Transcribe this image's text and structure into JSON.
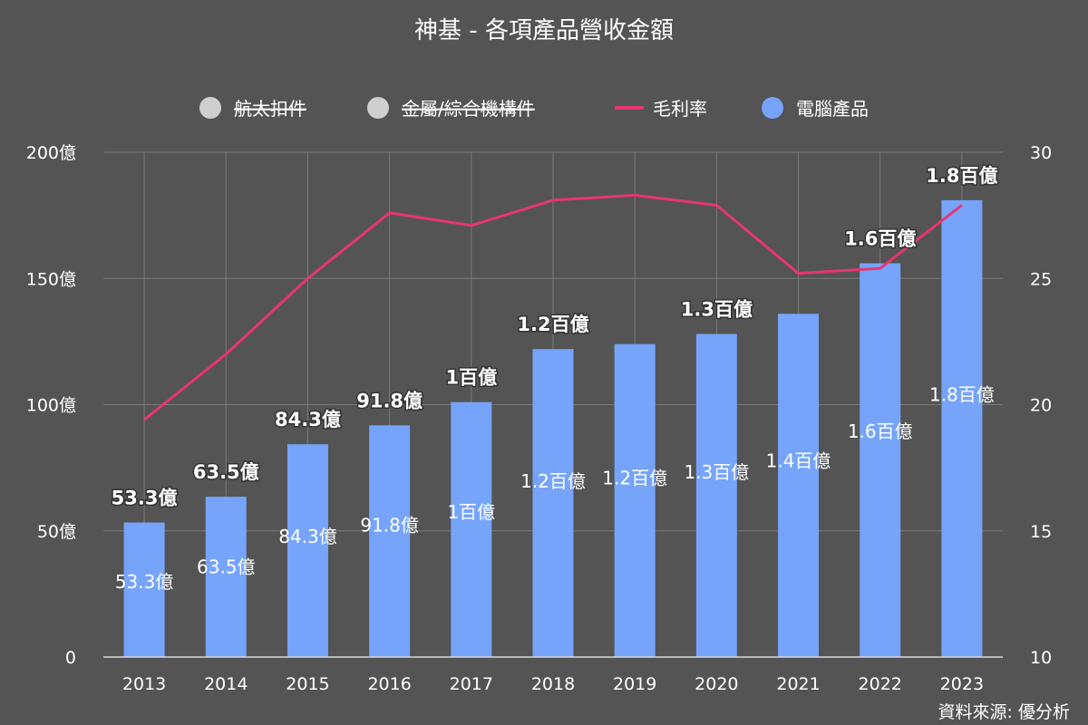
{
  "chart_data": {
    "type": "bar",
    "title": "神基 - 各項產品營收金額",
    "categories": [
      "2013",
      "2014",
      "2015",
      "2016",
      "2017",
      "2018",
      "2019",
      "2020",
      "2021",
      "2022",
      "2023"
    ],
    "series": [
      {
        "name": "電腦產品",
        "kind": "bar",
        "axis": "left",
        "color": "#76A4FB",
        "values": [
          53.3,
          63.5,
          84.3,
          91.8,
          101,
          122,
          124,
          128,
          136,
          156,
          181
        ],
        "inner_labels": [
          "53.3億",
          "63.5億",
          "84.3億",
          "91.8億",
          "1百億",
          "1.2百億",
          "1.2百億",
          "1.3百億",
          "1.4百億",
          "1.6百億",
          "1.8百億"
        ],
        "top_labels": [
          "53.3億",
          "63.5億",
          "84.3億",
          "91.8億",
          "1百億",
          "1.2百億",
          "",
          "1.3百億",
          "",
          "1.6百億",
          "1.8百億"
        ]
      },
      {
        "name": "毛利率",
        "kind": "line",
        "axis": "right",
        "color": "#E8366E",
        "values": [
          19.4,
          22.0,
          25.0,
          27.6,
          27.1,
          28.1,
          28.3,
          27.9,
          25.2,
          25.4,
          27.9
        ]
      }
    ],
    "legend": {
      "placement": "top",
      "items": [
        {
          "name": "航太扣件",
          "marker": "circle",
          "color": "#CFCFCF",
          "hidden": true
        },
        {
          "name": "金屬/綜合機構件",
          "marker": "circle",
          "color": "#CFCFCF",
          "hidden": true
        },
        {
          "name": "毛利率",
          "marker": "line",
          "color": "#E8366E",
          "hidden": false
        },
        {
          "name": "電腦產品",
          "marker": "circle",
          "color": "#76A4FB",
          "hidden": false
        }
      ]
    },
    "y_left": {
      "ylim": [
        0,
        200
      ],
      "ticks": [
        0,
        50,
        100,
        150,
        200
      ],
      "tick_labels": [
        "0",
        "50億",
        "100億",
        "150億",
        "200億"
      ]
    },
    "y_right": {
      "ylim": [
        10,
        30
      ],
      "ticks": [
        10,
        15,
        20,
        25,
        30
      ],
      "tick_labels": [
        "10",
        "15",
        "20",
        "25",
        "30"
      ]
    },
    "grid": true,
    "source": "資料來源: 優分析"
  },
  "colors": {
    "background": "#545454",
    "grid": "#7A7A7A",
    "axis_line": "#D9D9D9"
  }
}
